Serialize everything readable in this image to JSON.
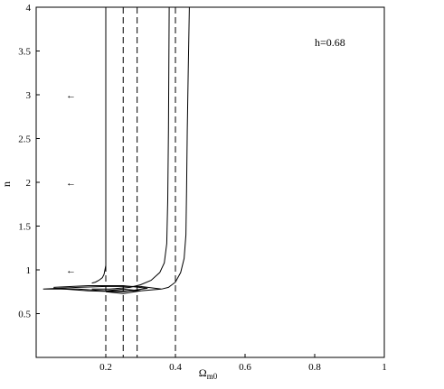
{
  "chart_data": {
    "type": "line",
    "title": "",
    "xlabel": "Ω",
    "xlabel_subscript": "m0",
    "ylabel": "n",
    "xlim": [
      0,
      1
    ],
    "ylim": [
      0,
      4
    ],
    "x_ticks": [
      0.2,
      0.4,
      0.6,
      0.8,
      1
    ],
    "x_tick_labels": [
      "0.2",
      "0.4",
      "0.6",
      "0.8",
      "1"
    ],
    "y_ticks": [
      0.5,
      1,
      1.5,
      2,
      2.5,
      3,
      3.5,
      4
    ],
    "y_tick_labels": [
      "0.5",
      "1",
      "1.5",
      "2",
      "2.5",
      "3",
      "3.5",
      "4"
    ],
    "grid": false,
    "annotation": "h=0.68",
    "arrow_glyph": "←",
    "arrows": [
      {
        "x": 0.1,
        "y": 3
      },
      {
        "x": 0.1,
        "y": 2
      },
      {
        "x": 0.1,
        "y": 1
      }
    ],
    "vertical_dashed_lines": [
      0.2,
      0.25,
      0.29,
      0.4
    ],
    "series": [
      {
        "points": [
          [
            0.16,
            0.85
          ],
          [
            0.17,
            0.86
          ],
          [
            0.18,
            0.88
          ],
          [
            0.19,
            0.91
          ],
          [
            0.195,
            0.95
          ],
          [
            0.2,
            1.05
          ],
          [
            0.2,
            1.4
          ],
          [
            0.2,
            2.0
          ],
          [
            0.2,
            3.0
          ],
          [
            0.2,
            4.0
          ]
        ]
      },
      {
        "points": [
          [
            0.16,
            0.78
          ],
          [
            0.21,
            0.78
          ],
          [
            0.27,
            0.8
          ],
          [
            0.3,
            0.83
          ],
          [
            0.33,
            0.88
          ],
          [
            0.355,
            0.97
          ],
          [
            0.368,
            1.08
          ],
          [
            0.375,
            1.3
          ],
          [
            0.378,
            1.8
          ],
          [
            0.38,
            2.6
          ],
          [
            0.381,
            3.3
          ],
          [
            0.382,
            4.0
          ]
        ]
      },
      {
        "points": [
          [
            0.36,
            0.78
          ],
          [
            0.38,
            0.8
          ],
          [
            0.4,
            0.86
          ],
          [
            0.415,
            0.97
          ],
          [
            0.425,
            1.13
          ],
          [
            0.43,
            1.4
          ],
          [
            0.432,
            1.9
          ],
          [
            0.434,
            2.6
          ],
          [
            0.437,
            3.3
          ],
          [
            0.44,
            4.0
          ]
        ]
      },
      {
        "points": [
          [
            0.02,
            0.78
          ],
          [
            0.12,
            0.8
          ],
          [
            0.2,
            0.81
          ],
          [
            0.3,
            0.81
          ],
          [
            0.36,
            0.78
          ],
          [
            0.3,
            0.76
          ],
          [
            0.2,
            0.76
          ],
          [
            0.12,
            0.78
          ],
          [
            0.02,
            0.78
          ]
        ]
      },
      {
        "points": [
          [
            0.05,
            0.8
          ],
          [
            0.15,
            0.82
          ],
          [
            0.25,
            0.82
          ],
          [
            0.32,
            0.79
          ],
          [
            0.25,
            0.75
          ],
          [
            0.15,
            0.76
          ],
          [
            0.05,
            0.79
          ]
        ]
      },
      {
        "points": [
          [
            0.2,
            0.76
          ],
          [
            0.25,
            0.78
          ],
          [
            0.3,
            0.76
          ],
          [
            0.25,
            0.73
          ],
          [
            0.2,
            0.75
          ]
        ]
      }
    ]
  }
}
